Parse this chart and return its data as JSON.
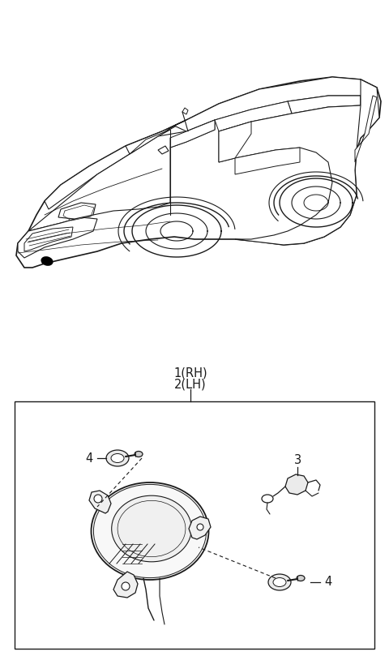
{
  "bg_color": "#ffffff",
  "line_color": "#1a1a1a",
  "fig_width": 4.8,
  "fig_height": 8.09,
  "dpi": 100,
  "label_1_text": "1(RH)",
  "label_2_text": "2(LH)",
  "label_3_text": "3",
  "label_4_text": "4"
}
